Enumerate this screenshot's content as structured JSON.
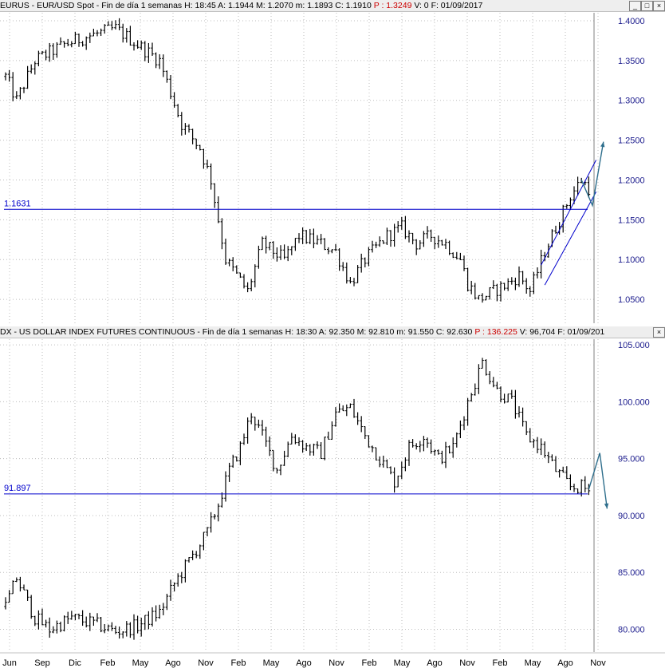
{
  "colors": {
    "bars": "#000000",
    "grid": "#bdbdbd",
    "axis_text": "#1a1a8c",
    "hline": "#0000cc",
    "channel": "#0000cc",
    "arrow": "#2e6e8c",
    "header_bg": "#eeeeee",
    "p_value": "#cc0000"
  },
  "window_buttons": [
    "_",
    "□",
    "×"
  ],
  "xaxis_labels": [
    "Jun",
    "Sep",
    "Dic",
    "Feb",
    "May",
    "Ago",
    "Nov",
    "Feb",
    "May",
    "Ago",
    "Nov",
    "Feb",
    "May",
    "Ago",
    "Nov",
    "Feb",
    "May",
    "Ago",
    "Nov"
  ],
  "chart_data": [
    {
      "type": "bar",
      "header": {
        "symbol": "EURUS - EUR/USD Spot - Fin de día 1 semanas",
        "h": "H: 18:45",
        "a": "A: 1.1944",
        "m": "M: 1.2070",
        "mn": "m: 1.1893",
        "c": "C: 1.1910",
        "p": "P : 1.3249",
        "v": "V: 0",
        "f": "F: 01/09/2017"
      },
      "ylim": [
        1.02,
        1.41
      ],
      "yticks": [
        "1.0500",
        "1.1000",
        "1.1500",
        "1.2000",
        "1.2500",
        "1.3000",
        "1.3500",
        "1.4000"
      ],
      "hline": {
        "label": "1.1631",
        "value": 1.1631
      },
      "waypoints": [
        [
          0,
          1.33
        ],
        [
          3,
          1.3
        ],
        [
          8,
          1.35
        ],
        [
          16,
          1.37
        ],
        [
          22,
          1.38
        ],
        [
          30,
          1.39
        ],
        [
          36,
          1.37
        ],
        [
          42,
          1.35
        ],
        [
          48,
          1.27
        ],
        [
          53,
          1.24
        ],
        [
          56,
          1.2
        ],
        [
          60,
          1.1
        ],
        [
          63,
          1.08
        ],
        [
          66,
          1.06
        ],
        [
          70,
          1.12
        ],
        [
          76,
          1.1
        ],
        [
          80,
          1.13
        ],
        [
          86,
          1.12
        ],
        [
          90,
          1.11
        ],
        [
          94,
          1.07
        ],
        [
          98,
          1.1
        ],
        [
          104,
          1.13
        ],
        [
          108,
          1.14
        ],
        [
          112,
          1.12
        ],
        [
          116,
          1.13
        ],
        [
          120,
          1.12
        ],
        [
          124,
          1.1
        ],
        [
          126,
          1.07
        ],
        [
          129,
          1.05
        ],
        [
          133,
          1.06
        ],
        [
          137,
          1.07
        ],
        [
          140,
          1.08
        ],
        [
          143,
          1.06
        ],
        [
          147,
          1.11
        ],
        [
          151,
          1.15
        ],
        [
          154,
          1.18
        ],
        [
          157,
          1.2
        ],
        [
          159,
          1.19
        ]
      ],
      "channel": {
        "upper": [
          [
            146,
            1.093
          ],
          [
            161,
            1.225
          ]
        ],
        "lower": [
          [
            147,
            1.068
          ],
          [
            161,
            1.185
          ]
        ]
      },
      "projection": [
        [
          157,
          1.2
        ],
        [
          160,
          1.168
        ],
        [
          163,
          1.248
        ]
      ]
    },
    {
      "type": "bar",
      "header": {
        "symbol": "DX - US DOLLAR INDEX FUTURES CONTINUOUS - Fin de día 1 semanas",
        "h": "H: 18:30",
        "a": "A: 92.350",
        "m": "M: 92.810",
        "mn": "m: 91.550",
        "c": "C: 92.630",
        "p": "P : 136.225",
        "v": "V: 96,704",
        "f": "F: 01/09/201"
      },
      "ylim": [
        78,
        105.5
      ],
      "yticks": [
        "80.000",
        "85.000",
        "90.000",
        "95.000",
        "100.000",
        "105.000"
      ],
      "hline": {
        "label": "91.897",
        "value": 91.897
      },
      "waypoints": [
        [
          0,
          82
        ],
        [
          3,
          84.5
        ],
        [
          8,
          81
        ],
        [
          12,
          80
        ],
        [
          18,
          81
        ],
        [
          24,
          80.5
        ],
        [
          30,
          79.8
        ],
        [
          36,
          80.3
        ],
        [
          42,
          81.5
        ],
        [
          46,
          84
        ],
        [
          50,
          86
        ],
        [
          55,
          88.5
        ],
        [
          58,
          91
        ],
        [
          61,
          94
        ],
        [
          64,
          96
        ],
        [
          67,
          99
        ],
        [
          70,
          97
        ],
        [
          74,
          94
        ],
        [
          78,
          97
        ],
        [
          82,
          96
        ],
        [
          86,
          95.5
        ],
        [
          90,
          99
        ],
        [
          94,
          99.5
        ],
        [
          98,
          97
        ],
        [
          102,
          95
        ],
        [
          106,
          93
        ],
        [
          110,
          96
        ],
        [
          114,
          97
        ],
        [
          118,
          95
        ],
        [
          122,
          96
        ],
        [
          126,
          100
        ],
        [
          130,
          103.5
        ],
        [
          134,
          101
        ],
        [
          138,
          100
        ],
        [
          142,
          97
        ],
        [
          146,
          96
        ],
        [
          150,
          94
        ],
        [
          154,
          92.5
        ],
        [
          157,
          92.5
        ],
        [
          159,
          92.2
        ]
      ],
      "projection": [
        [
          159,
          92.3
        ],
        [
          162,
          95.5
        ],
        [
          164,
          90.6
        ]
      ]
    }
  ]
}
